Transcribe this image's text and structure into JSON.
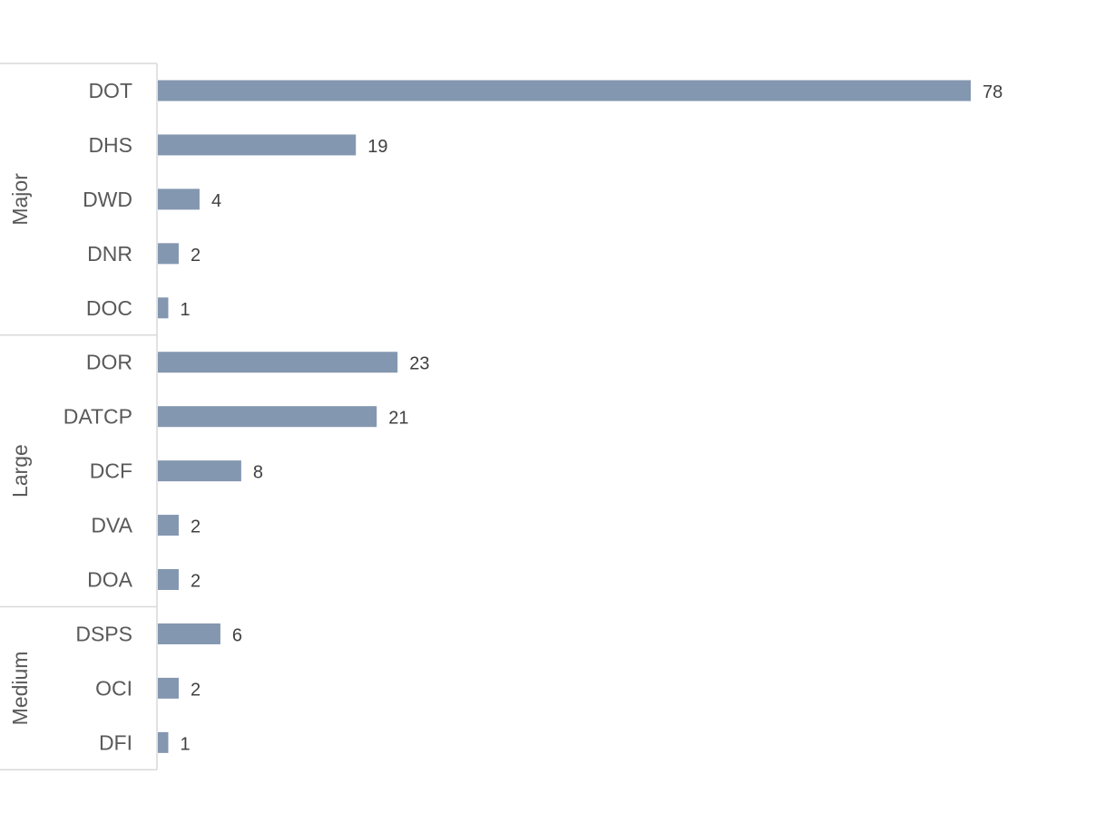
{
  "chart_data": {
    "type": "bar",
    "orientation": "horizontal",
    "title": "",
    "xlabel": "",
    "ylabel": "",
    "grid": false,
    "legend": "none",
    "bar_color": "#8497b0",
    "xlim": [
      0,
      78
    ],
    "groups": [
      {
        "name": "Major",
        "categories": [
          "DOT",
          "DHS",
          "DWD",
          "DNR",
          "DOC"
        ],
        "values": [
          78,
          19,
          4,
          2,
          1
        ]
      },
      {
        "name": "Large",
        "categories": [
          "DOR",
          "DATCP",
          "DCF",
          "DVA",
          "DOA"
        ],
        "values": [
          23,
          21,
          8,
          2,
          2
        ]
      },
      {
        "name": "Medium",
        "categories": [
          "DSPS",
          "OCI",
          "DFI"
        ],
        "values": [
          6,
          2,
          1
        ]
      }
    ]
  }
}
